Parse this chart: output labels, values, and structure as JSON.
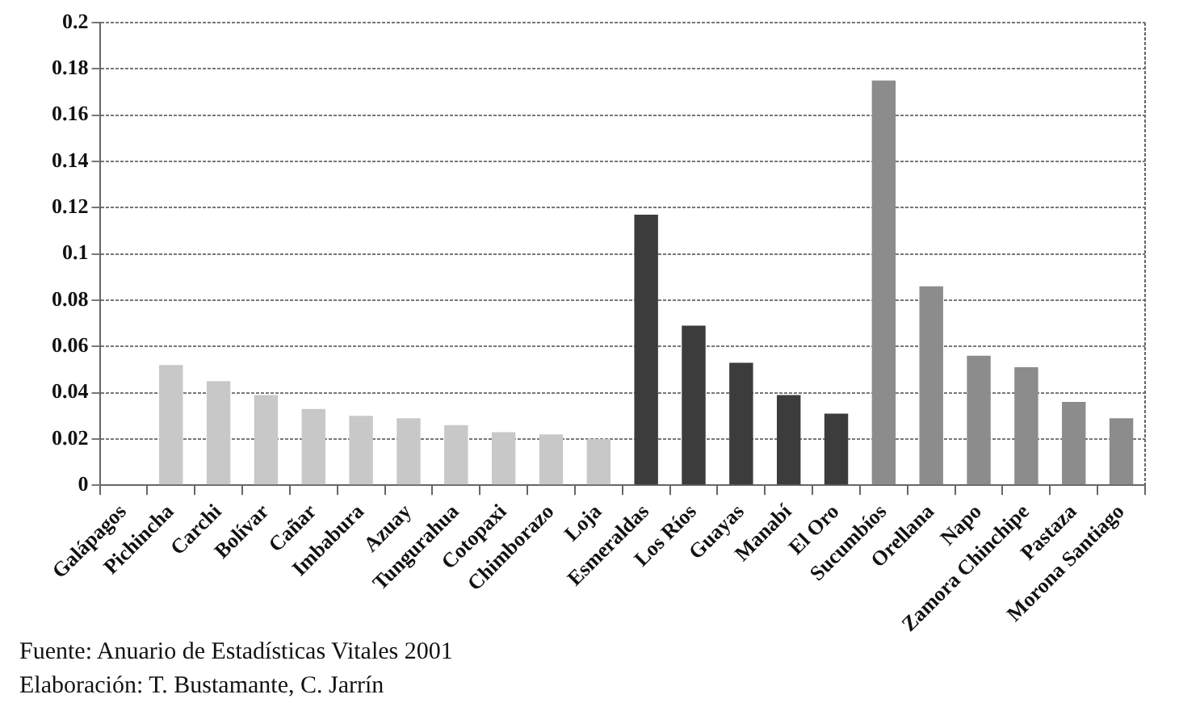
{
  "chart_data": {
    "type": "bar",
    "categories": [
      "Galápagos",
      "Pichincha",
      "Carchi",
      "Bolívar",
      "Cañar",
      "Imbabura",
      "Azuay",
      "Tungurahua",
      "Cotopaxi",
      "Chimborazo",
      "Loja",
      "Esmeraldas",
      "Los Ríos",
      "Guayas",
      "Manabí",
      "El Oro",
      "Sucumbíos",
      "Orellana",
      "Napo",
      "Zamora Chinchipe",
      "Pastaza",
      "Morona Santiago"
    ],
    "values": [
      0,
      0.052,
      0.045,
      0.039,
      0.033,
      0.03,
      0.029,
      0.026,
      0.023,
      0.022,
      0.02,
      0.117,
      0.069,
      0.053,
      0.039,
      0.031,
      0.175,
      0.086,
      0.056,
      0.051,
      0.036,
      0.029
    ],
    "colors": [
      "#c8c8c8",
      "#c8c8c8",
      "#c8c8c8",
      "#c8c8c8",
      "#c8c8c8",
      "#c8c8c8",
      "#c8c8c8",
      "#c8c8c8",
      "#c8c8c8",
      "#c8c8c8",
      "#c8c8c8",
      "#3c3c3c",
      "#3c3c3c",
      "#3c3c3c",
      "#3c3c3c",
      "#3c3c3c",
      "#8c8c8c",
      "#8c8c8c",
      "#8c8c8c",
      "#8c8c8c",
      "#8c8c8c",
      "#8c8c8c"
    ],
    "ylim": [
      0,
      0.2
    ],
    "yticks": [
      0,
      0.02,
      0.04,
      0.06,
      0.08,
      0.1,
      0.12,
      0.14,
      0.16,
      0.18,
      0.2
    ],
    "grid": "y",
    "legend": false,
    "annotations": [
      "Fuente: Anuario de Estadísticas Vitales 2001",
      "Elaboración: T. Bustamante, C. Jarrín"
    ]
  }
}
